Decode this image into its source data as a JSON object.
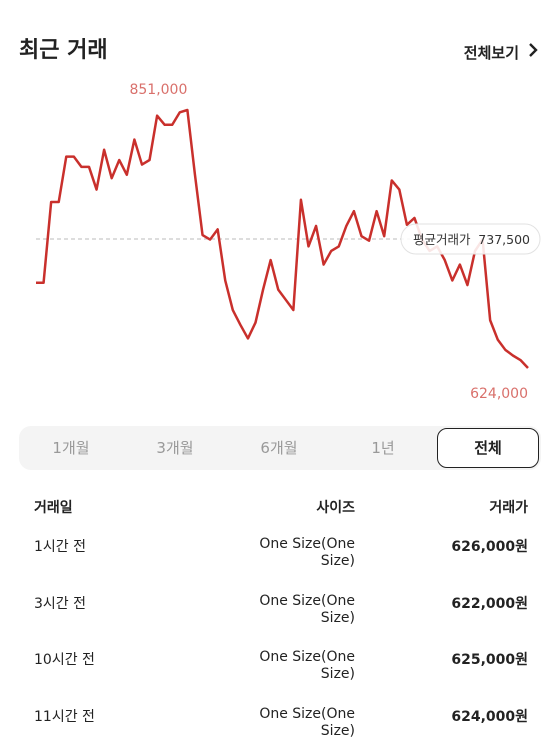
{
  "header": {
    "title": "최근 거래",
    "link": "전체보기"
  },
  "chart_data": {
    "type": "line",
    "color": "#c9302c",
    "ylim": [
      624000,
      851000
    ],
    "values": [
      699000,
      699000,
      770000,
      770000,
      810000,
      810000,
      801000,
      801000,
      781000,
      816000,
      791000,
      807000,
      794000,
      825000,
      803000,
      807000,
      846000,
      838000,
      838000,
      849000,
      851000,
      794000,
      741000,
      737000,
      746000,
      701000,
      675000,
      662000,
      650000,
      664000,
      693000,
      719000,
      693000,
      684000,
      675000,
      772000,
      731000,
      749000,
      715000,
      727000,
      731000,
      749000,
      762000,
      740000,
      736000,
      762000,
      740000,
      789000,
      781000,
      750000,
      756000,
      737000,
      727000,
      731000,
      719000,
      701000,
      715000,
      697000,
      727000,
      737000,
      666000,
      649000,
      640000,
      635000,
      631000,
      624000
    ],
    "max": {
      "value": 851000,
      "label": "851,000"
    },
    "min": {
      "value": 624000,
      "label": "624,000"
    },
    "average_label": "평균거래가",
    "average": {
      "value": 737500,
      "label": "737,500"
    }
  },
  "tabs": {
    "items": [
      "1개월",
      "3개월",
      "6개월",
      "1년",
      "전체"
    ],
    "selected": 4
  },
  "table": {
    "headers": [
      "거래일",
      "사이즈",
      "거래가"
    ],
    "rows": [
      [
        "1시간 전",
        "One Size(One Size)",
        "626,000원"
      ],
      [
        "3시간 전",
        "One Size(One Size)",
        "622,000원"
      ],
      [
        "10시간 전",
        "One Size(One Size)",
        "625,000원"
      ],
      [
        "11시간 전",
        "One Size(One Size)",
        "624,000원"
      ]
    ]
  }
}
